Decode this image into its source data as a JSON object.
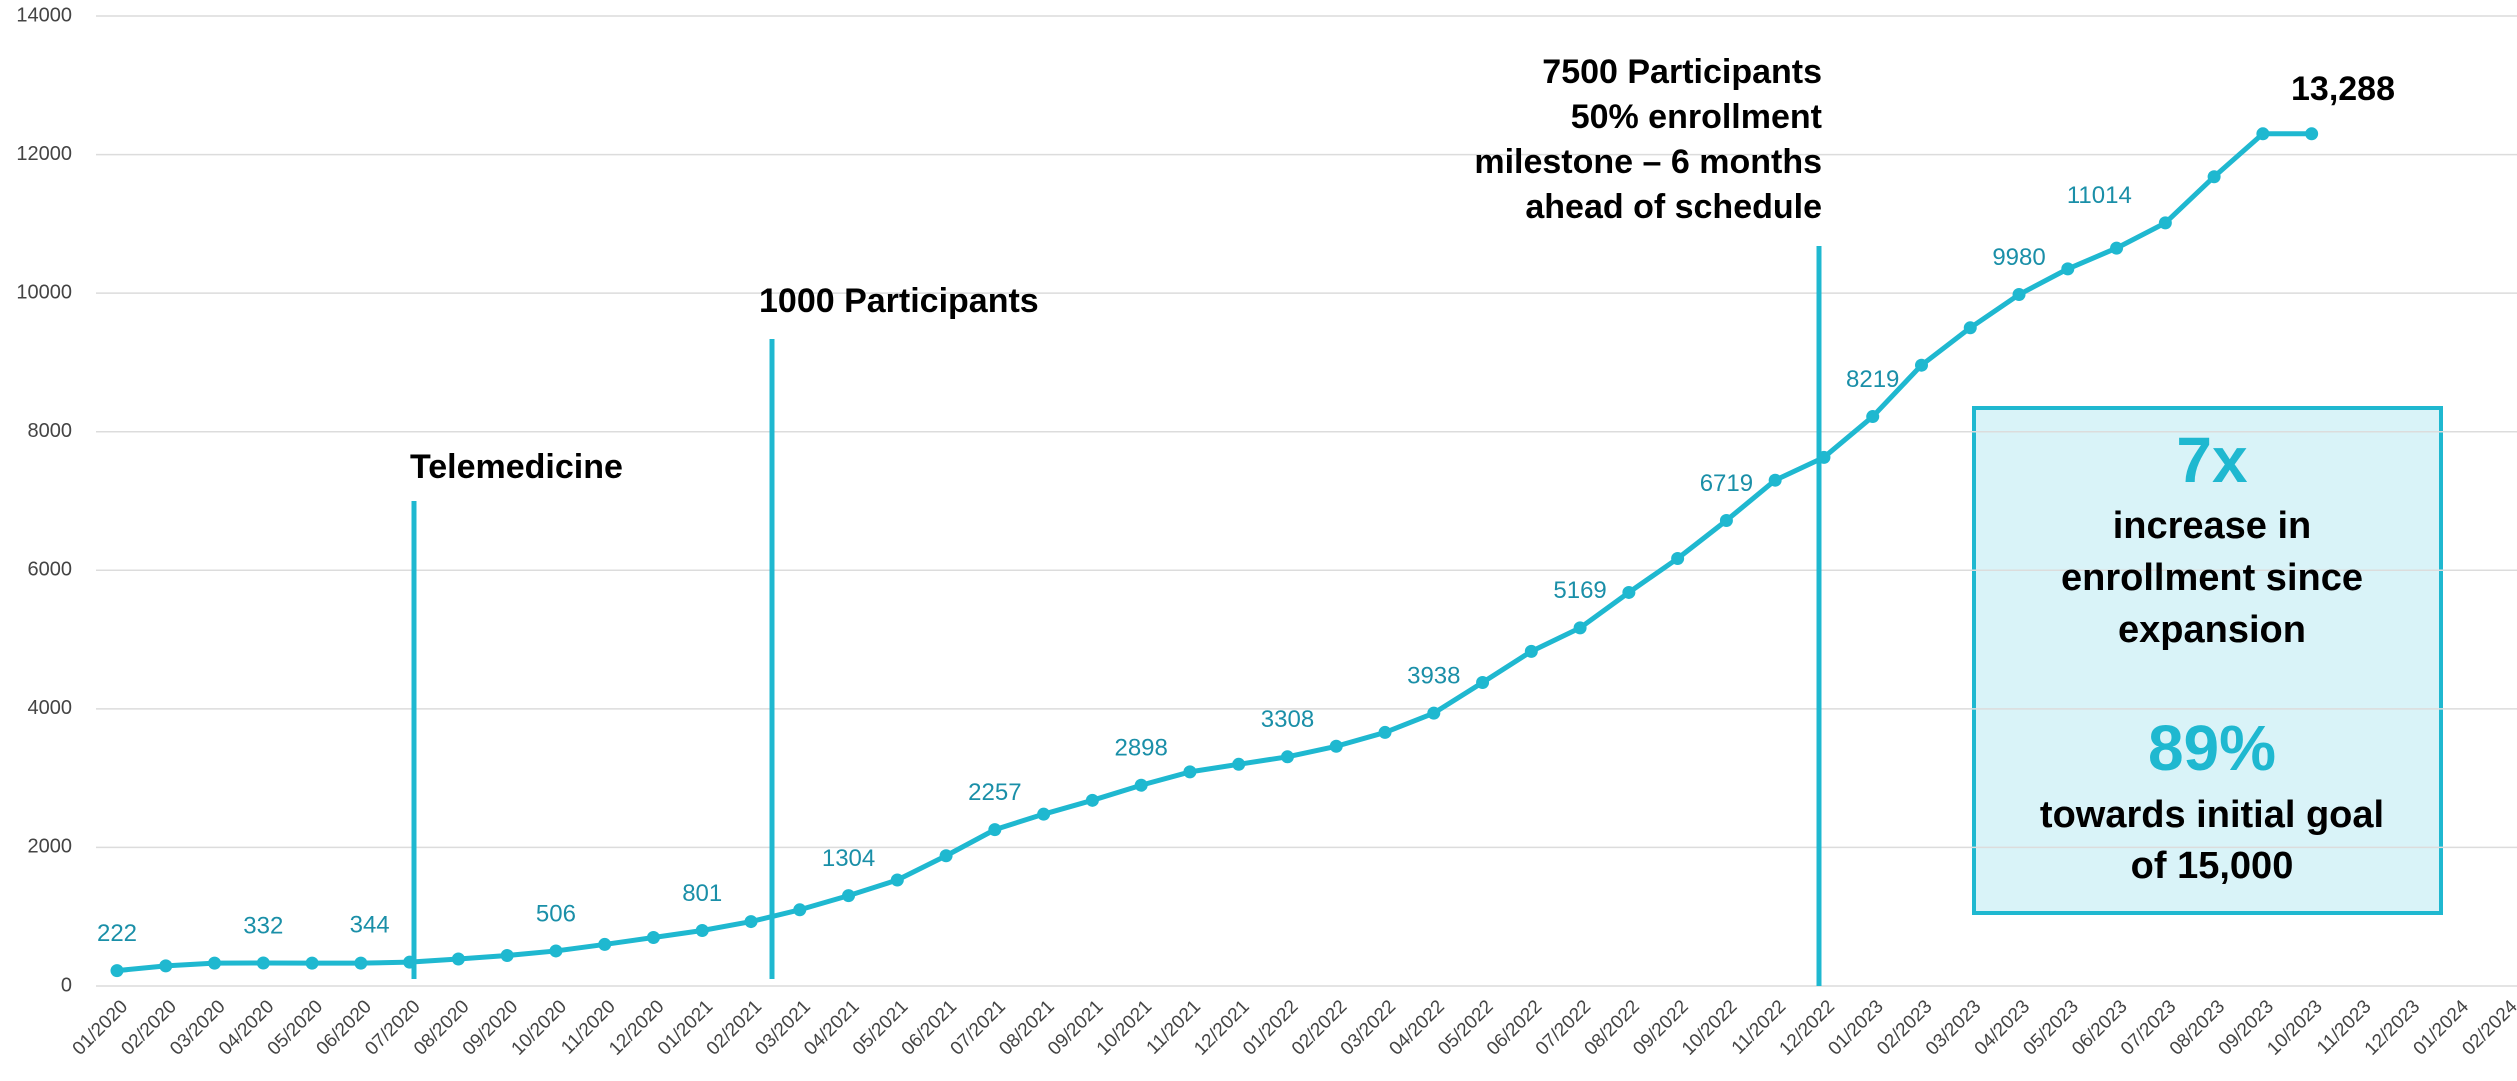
{
  "chart_data": {
    "type": "line",
    "categories": [
      "01/2020",
      "02/2020",
      "03/2020",
      "04/2020",
      "05/2020",
      "06/2020",
      "07/2020",
      "08/2020",
      "09/2020",
      "10/2020",
      "11/2020",
      "12/2020",
      "01/2021",
      "02/2021",
      "03/2021",
      "04/2021",
      "05/2021",
      "06/2021",
      "07/2021",
      "08/2021",
      "09/2021",
      "10/2021",
      "11/2021",
      "12/2021",
      "01/2022",
      "02/2022",
      "03/2022",
      "04/2022",
      "05/2022",
      "06/2022",
      "07/2022",
      "08/2022",
      "09/2022",
      "10/2022",
      "11/2022",
      "12/2022",
      "01/2023",
      "02/2023",
      "03/2023",
      "04/2023",
      "05/2023",
      "06/2023",
      "07/2023",
      "08/2023",
      "09/2023",
      "10/2023",
      "11/2023",
      "12/2023",
      "01/2024",
      "02/2024"
    ],
    "series": [
      {
        "name": "Participants",
        "color": "#1fb8d0",
        "values": [
          222,
          290,
          330,
          332,
          330,
          330,
          344,
          390,
          440,
          506,
          600,
          700,
          801,
          930,
          1100,
          1304,
          1530,
          1880,
          2257,
          2480,
          2680,
          2898,
          3090,
          3200,
          3308,
          3460,
          3660,
          3938,
          4380,
          4830,
          5169,
          5680,
          6170,
          6719,
          7300,
          7630,
          8219,
          8960,
          9500,
          9980,
          10350,
          10650,
          11014,
          11680,
          12300,
          12300,
          null,
          null,
          null,
          null
        ]
      }
    ],
    "data_label_indices": [
      0,
      3,
      6,
      9,
      12,
      15,
      18,
      21,
      24,
      27,
      30,
      33,
      36,
      39,
      42
    ],
    "ylim": [
      0,
      14000
    ],
    "yticks": [
      0,
      2000,
      4000,
      6000,
      8000,
      10000,
      12000,
      14000
    ],
    "grid": true,
    "annotations": [
      {
        "lines": [
          "Telemedicine"
        ]
      },
      {
        "lines": [
          "1000 Participants"
        ]
      },
      {
        "lines": [
          "7500 Participants",
          "50% enrollment",
          "milestone – 6 months",
          "ahead of schedule"
        ]
      },
      {
        "lines": [
          "13,288"
        ]
      }
    ],
    "callout": {
      "headline1": "7x",
      "text1": [
        "increase in",
        "enrollment since",
        "expansion"
      ],
      "headline2": "89%",
      "text2": [
        "towards initial goal",
        "of 15,000"
      ]
    }
  }
}
